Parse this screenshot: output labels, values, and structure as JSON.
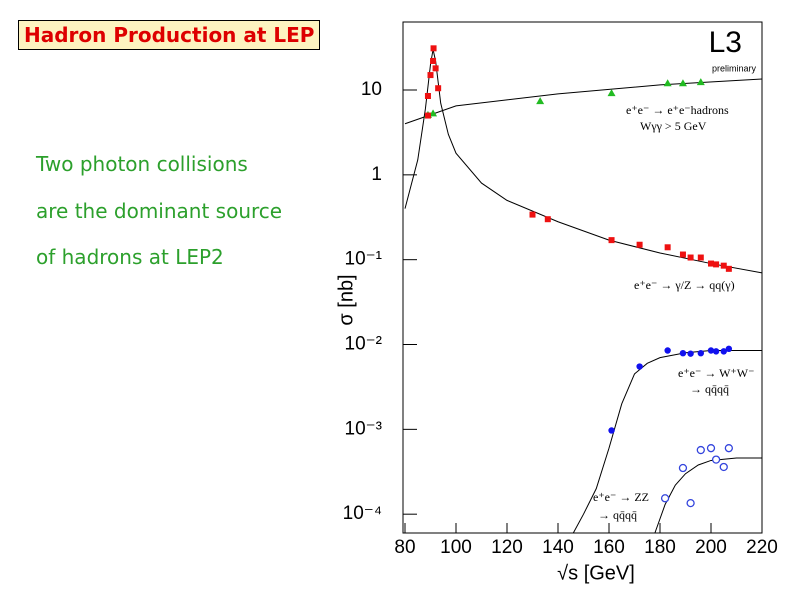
{
  "slide": {
    "title": "Hadron Production at LEP",
    "lines": [
      "Two photon collisions",
      "are the dominant source",
      "of hadrons at LEP2"
    ]
  },
  "chart_data": {
    "type": "scatter",
    "x_label": "√s [GeV]",
    "y_label": "σ [nb]",
    "annotations": [
      "L3",
      "preliminary",
      "e⁺e⁻ → e⁺e⁻hadrons",
      "Wγγ > 5 GeV",
      "e⁺e⁻ → γ/Z → qq(γ)",
      "e⁺e⁻ → W⁺W⁻",
      "→ qq̄qq̄",
      "e⁺e⁻ → ZZ",
      "→ qq̄qq̄"
    ],
    "xlim": [
      80,
      220
    ],
    "xticks": [
      80,
      100,
      120,
      140,
      160,
      180,
      200,
      220
    ],
    "ylim": [
      6e-05,
      60
    ],
    "log_y": true,
    "yticks": [
      {
        "value": 10,
        "label": "10"
      },
      {
        "value": 1,
        "label": "1"
      },
      {
        "value": 0.1,
        "label": "10⁻¹"
      },
      {
        "value": 0.01,
        "label": "10⁻²"
      },
      {
        "value": 0.001,
        "label": "10⁻³"
      },
      {
        "value": 0.0001,
        "label": "10⁻⁴"
      }
    ],
    "series": [
      {
        "color": "#22bb22",
        "marker": "triangle",
        "x": [
          89,
          91,
          133,
          161,
          183,
          189,
          196
        ],
        "values": [
          5.1,
          5.3,
          7.4,
          9.2,
          12,
          12,
          12.4
        ]
      },
      {
        "color": "#ee1111",
        "marker": "square",
        "x": [
          89,
          89,
          90,
          91,
          91.2,
          92,
          93,
          130,
          136,
          161,
          172,
          183,
          189,
          192,
          196,
          200,
          202,
          205,
          207
        ],
        "values": [
          5,
          8.5,
          15,
          22,
          31,
          18,
          10.5,
          0.34,
          0.3,
          0.17,
          0.15,
          0.14,
          0.115,
          0.106,
          0.106,
          0.09,
          0.088,
          0.085,
          0.078
        ]
      },
      {
        "color": "#1111ee",
        "marker": "circle",
        "x": [
          161,
          172,
          183,
          189,
          192,
          196,
          200,
          202,
          205,
          207
        ],
        "values": [
          0.00097,
          0.0055,
          0.0085,
          0.0079,
          0.0078,
          0.0079,
          0.0085,
          0.0083,
          0.0083,
          0.0089
        ]
      },
      {
        "color": "#3344dd",
        "marker": "open-circle",
        "x": [
          182,
          189,
          192,
          196,
          200,
          202,
          205,
          207
        ],
        "values": [
          0.000154,
          0.00035,
          0.000135,
          0.00057,
          0.0006,
          0.00044,
          0.00036,
          0.0006
        ]
      }
    ],
    "curves": [
      {
        "color": "#000000",
        "x": [
          80,
          100,
          140,
          180,
          220
        ],
        "values": [
          4,
          6.5,
          9,
          11.5,
          13.5
        ]
      },
      {
        "color": "#000000",
        "x": [
          80,
          85,
          88,
          90,
          91,
          92,
          94,
          97,
          100,
          110,
          120,
          140,
          160,
          180,
          200,
          220
        ],
        "values": [
          0.4,
          1.5,
          6,
          20,
          30,
          22,
          7,
          3,
          1.8,
          0.8,
          0.5,
          0.28,
          0.17,
          0.12,
          0.09,
          0.07
        ]
      },
      {
        "color": "#000000",
        "x": [
          146,
          150,
          155,
          160,
          165,
          170,
          175,
          180,
          190,
          200,
          220
        ],
        "values": [
          6e-05,
          0.0001,
          0.0002,
          0.0006,
          0.002,
          0.0045,
          0.006,
          0.007,
          0.008,
          0.0085,
          0.0085
        ]
      },
      {
        "color": "#000000",
        "x": [
          178,
          182,
          186,
          190,
          195,
          200,
          210,
          220
        ],
        "values": [
          6e-05,
          0.00013,
          0.00022,
          0.0003,
          0.00038,
          0.00043,
          0.00046,
          0.00046
        ]
      }
    ]
  }
}
